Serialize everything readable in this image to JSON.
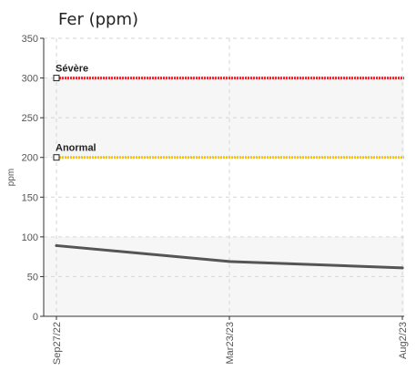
{
  "chart_data": {
    "type": "line",
    "title": "Fer (ppm)",
    "ylabel": "ppm",
    "xlabel": "",
    "ylim": [
      0,
      350
    ],
    "y_ticks": [
      0,
      50,
      100,
      150,
      200,
      250,
      300,
      350
    ],
    "categories": [
      "Sep27/22",
      "Mar23/23",
      "Aug2/23"
    ],
    "series": [
      {
        "values": [
          89,
          69,
          61
        ],
        "color": "#555555"
      }
    ],
    "thresholds": [
      {
        "label": "Sévère",
        "value": 300,
        "color": "#e8262b"
      },
      {
        "label": "Anormal",
        "value": 200,
        "color": "#f5c400"
      }
    ],
    "bands": [
      {
        "from": 0,
        "to": 100,
        "color": "#f6f6f6"
      },
      {
        "from": 200,
        "to": 300,
        "color": "#f6f6f6"
      }
    ],
    "grid": true
  }
}
